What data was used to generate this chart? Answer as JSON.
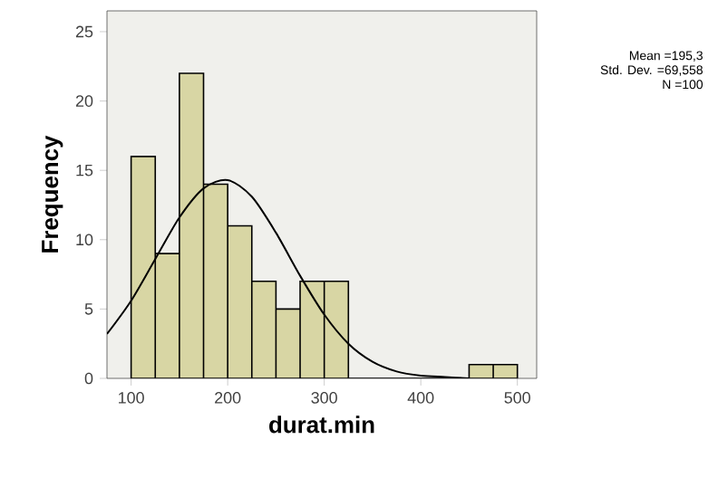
{
  "chart_data": {
    "type": "histogram",
    "xlabel": "durat.min",
    "ylabel": "Frequency",
    "bins": [
      100,
      125,
      150,
      175,
      200,
      225,
      250,
      275,
      300,
      325,
      350,
      375,
      400,
      425,
      450,
      475,
      500
    ],
    "values": [
      16,
      9,
      22,
      14,
      11,
      7,
      5,
      7,
      7,
      0,
      0,
      0,
      0,
      0,
      1,
      1
    ],
    "color": "#d8d6a4",
    "series": [
      {
        "type": "line",
        "color": "#000000",
        "x": [
          75,
          100,
          125,
          150,
          175,
          200,
          225,
          250,
          275,
          300,
          325,
          350,
          375,
          400,
          425,
          450
        ],
        "values": [
          3.2,
          5.6,
          8.6,
          11.6,
          13.7,
          14.3,
          13.1,
          10.5,
          7.4,
          4.6,
          2.5,
          1.2,
          0.5,
          0.2,
          0.1,
          0.0
        ]
      }
    ],
    "xlim": [
      75,
      520
    ],
    "ylim": [
      0,
      26.5
    ],
    "xticks": [
      100,
      200,
      300,
      400,
      500
    ],
    "yticks": [
      0,
      5,
      10,
      15,
      20,
      25
    ],
    "annotations": [
      "Mean =195,3",
      "Std. Dev. =69,558",
      "N =100"
    ]
  }
}
